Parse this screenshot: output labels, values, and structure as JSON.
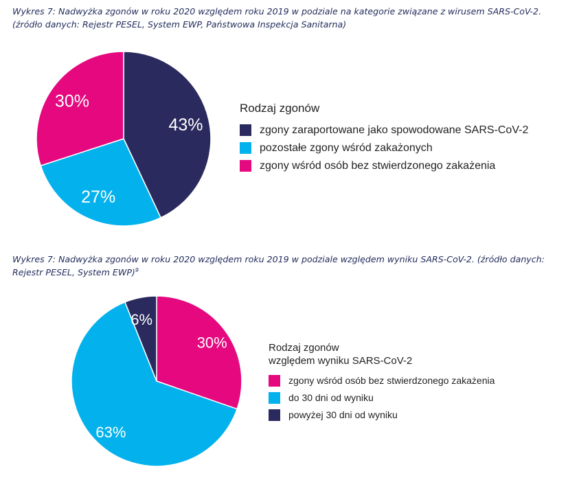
{
  "colors": {
    "navy": "#2b2a5e",
    "cyan": "#03b2ec",
    "magenta": "#e5087e"
  },
  "captions": {
    "chart1": {
      "line1": "Wykres 7: Nadwyżka zgonów w roku 2020 względem roku 2019 w podziale na kategorie związane z wirusem SARS-CoV-2.",
      "line2": "(źródło danych: Rejestr PESEL, System EWP, Państwowa Inspekcja Sanitarna)"
    },
    "chart2": {
      "line1": "Wykres 7: Nadwyżka zgonów w roku 2020 względem roku 2019 w podziale względem wyniku SARS-CoV-2. (źródło danych:",
      "line2": "Rejestr PESEL, System EWP)",
      "footnote": "9"
    }
  },
  "chart_data": [
    {
      "type": "pie",
      "title": "",
      "legend_title": "Rodzaj zgonów",
      "legend_position": "right",
      "start_angle_deg": 0,
      "direction": "clockwise",
      "slices": [
        {
          "label": "zgony zaraportowane jako spowodowane SARS-CoV-2",
          "value": 43,
          "display": "43%",
          "color": "#2b2a5e"
        },
        {
          "label": "pozostałe zgony wśród zakażonych",
          "value": 27,
          "display": "27%",
          "color": "#03b2ec"
        },
        {
          "label": "zgony wśród osób bez stwierdzonego zakażenia",
          "value": 30,
          "display": "30%",
          "color": "#e5087e"
        }
      ]
    },
    {
      "type": "pie",
      "title": "",
      "legend_title_lines": [
        "Rodzaj zgonów",
        "względem wyniku SARS-CoV-2"
      ],
      "legend_position": "right",
      "start_angle_deg": 0,
      "direction": "clockwise",
      "slices": [
        {
          "label": "zgony wśród osób bez stwierdzonego zakażenia",
          "value": 30,
          "display": "30%",
          "color": "#e5087e"
        },
        {
          "label": "do 30 dni od wyniku",
          "value": 63,
          "display": "63%",
          "color": "#03b2ec"
        },
        {
          "label": "powyżej 30 dni od wyniku",
          "value": 6,
          "display": "6%",
          "color": "#2b2a5e"
        }
      ]
    }
  ]
}
